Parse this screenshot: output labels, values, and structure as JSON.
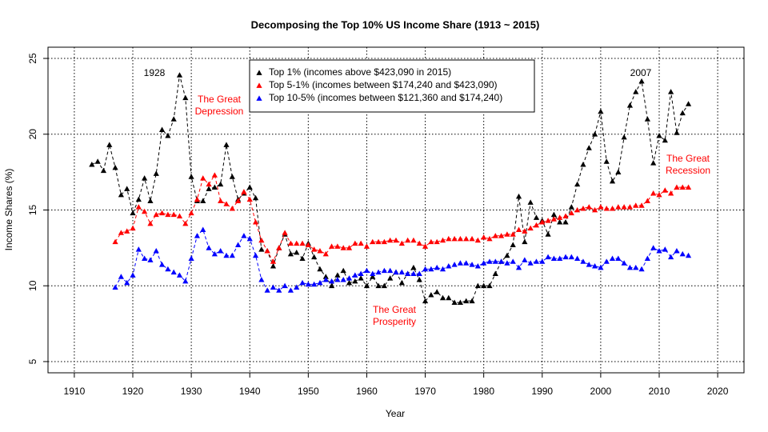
{
  "chart_data": {
    "type": "line",
    "title": "Decomposing the Top 10% US Income Share (1913 ~ 2015)",
    "x_label": "Year",
    "y_label": "Income Shares (%)",
    "x": [
      1913,
      1914,
      1915,
      1916,
      1917,
      1918,
      1919,
      1920,
      1921,
      1922,
      1923,
      1924,
      1925,
      1926,
      1927,
      1928,
      1929,
      1930,
      1931,
      1932,
      1933,
      1934,
      1935,
      1936,
      1937,
      1938,
      1939,
      1940,
      1941,
      1942,
      1943,
      1944,
      1945,
      1946,
      1947,
      1948,
      1949,
      1950,
      1951,
      1952,
      1953,
      1954,
      1955,
      1956,
      1957,
      1958,
      1959,
      1960,
      1961,
      1962,
      1963,
      1964,
      1965,
      1966,
      1967,
      1968,
      1969,
      1970,
      1971,
      1972,
      1973,
      1974,
      1975,
      1976,
      1977,
      1978,
      1979,
      1980,
      1981,
      1982,
      1983,
      1984,
      1985,
      1986,
      1987,
      1988,
      1989,
      1990,
      1991,
      1992,
      1993,
      1994,
      1995,
      1996,
      1997,
      1998,
      1999,
      2000,
      2001,
      2002,
      2003,
      2004,
      2005,
      2006,
      2007,
      2008,
      2009,
      2010,
      2011,
      2012,
      2013,
      2014,
      2015
    ],
    "series": [
      {
        "name": "Top 1% (incomes above $423,090 in 2015)",
        "color": "#000000",
        "values": [
          18.0,
          18.2,
          17.6,
          19.3,
          17.8,
          16.0,
          16.4,
          14.8,
          15.7,
          17.1,
          15.6,
          17.4,
          20.3,
          19.9,
          21.0,
          23.9,
          22.4,
          17.2,
          15.6,
          15.6,
          16.4,
          16.5,
          16.7,
          19.3,
          17.2,
          15.7,
          16.1,
          16.5,
          15.8,
          12.4,
          12.3,
          11.3,
          12.5,
          13.4,
          12.1,
          12.2,
          11.8,
          12.8,
          11.9,
          11.1,
          10.6,
          10.0,
          10.7,
          11.0,
          10.2,
          10.3,
          10.5,
          10.0,
          10.6,
          10.0,
          10.0,
          10.5,
          10.9,
          10.2,
          10.8,
          11.2,
          10.4,
          9.0,
          9.4,
          9.6,
          9.2,
          9.2,
          8.9,
          8.9,
          9.0,
          9.0,
          10.0,
          10.0,
          10.0,
          10.8,
          11.6,
          12.0,
          12.7,
          15.9,
          12.9,
          15.5,
          14.5,
          14.3,
          13.4,
          14.7,
          14.2,
          14.2,
          15.2,
          16.7,
          18.0,
          19.1,
          20.0,
          21.5,
          18.2,
          16.9,
          17.5,
          19.8,
          21.9,
          22.8,
          23.5,
          21.0,
          18.1,
          19.9,
          19.6,
          22.8,
          20.1,
          21.4,
          22.0
        ]
      },
      {
        "name": "Top 5-1% (incomes between $174,240 and $423,090)",
        "color": "#ff0000",
        "values": [
          null,
          null,
          null,
          null,
          12.9,
          13.5,
          13.6,
          13.8,
          15.2,
          14.9,
          14.1,
          14.7,
          14.8,
          14.7,
          14.7,
          14.6,
          14.1,
          14.8,
          15.7,
          17.1,
          16.7,
          17.3,
          15.6,
          15.4,
          15.1,
          15.6,
          16.2,
          15.7,
          14.2,
          13.0,
          12.3,
          11.6,
          12.5,
          13.5,
          12.8,
          12.8,
          12.8,
          12.7,
          12.4,
          12.3,
          12.1,
          12.6,
          12.6,
          12.5,
          12.5,
          12.8,
          12.8,
          12.6,
          12.9,
          12.9,
          12.9,
          13.0,
          13.0,
          12.8,
          13.0,
          13.0,
          12.8,
          12.6,
          12.9,
          12.9,
          13.0,
          13.1,
          13.1,
          13.1,
          13.1,
          13.1,
          13.0,
          13.2,
          13.1,
          13.3,
          13.3,
          13.4,
          13.4,
          13.7,
          13.6,
          13.8,
          14.0,
          14.2,
          14.3,
          14.4,
          14.5,
          14.6,
          14.8,
          15.0,
          15.1,
          15.2,
          15.0,
          15.2,
          15.1,
          15.1,
          15.2,
          15.2,
          15.2,
          15.3,
          15.3,
          15.6,
          16.1,
          16.0,
          16.3,
          16.1,
          16.5,
          16.5,
          16.5
        ]
      },
      {
        "name": "Top 10-5% (incomes between $121,360 and $174,240)",
        "color": "#0000ff",
        "values": [
          null,
          null,
          null,
          null,
          9.9,
          10.6,
          10.2,
          10.7,
          12.4,
          11.8,
          11.7,
          12.3,
          11.4,
          11.1,
          10.9,
          10.7,
          10.3,
          11.8,
          13.3,
          13.7,
          12.5,
          12.1,
          12.3,
          12.0,
          12.0,
          12.7,
          13.3,
          13.1,
          12.0,
          10.4,
          9.7,
          9.9,
          9.7,
          10.0,
          9.7,
          9.9,
          10.2,
          10.1,
          10.1,
          10.2,
          10.4,
          10.3,
          10.4,
          10.4,
          10.5,
          10.7,
          10.8,
          11.0,
          10.8,
          10.9,
          11.0,
          11.0,
          10.9,
          10.9,
          10.8,
          10.8,
          10.8,
          11.1,
          11.1,
          11.2,
          11.1,
          11.3,
          11.4,
          11.5,
          11.5,
          11.4,
          11.3,
          11.5,
          11.6,
          11.6,
          11.6,
          11.5,
          11.6,
          11.2,
          11.7,
          11.5,
          11.6,
          11.6,
          11.9,
          11.8,
          11.8,
          11.9,
          11.9,
          11.8,
          11.6,
          11.4,
          11.3,
          11.2,
          11.6,
          11.8,
          11.8,
          11.5,
          11.2,
          11.2,
          11.1,
          11.8,
          12.5,
          12.3,
          12.4,
          11.9,
          12.3,
          12.1,
          12.0
        ]
      }
    ],
    "annotations": [
      {
        "lines": [
          "1928"
        ],
        "color": "#000000"
      },
      {
        "lines": [
          "The Great",
          "Depression"
        ],
        "color": "#ff0000"
      },
      {
        "lines": [
          "The Great",
          "Prosperity"
        ],
        "color": "#ff0000"
      },
      {
        "lines": [
          "2007"
        ],
        "color": "#000000"
      },
      {
        "lines": [
          "The Great",
          "Recession"
        ],
        "color": "#ff0000"
      }
    ],
    "xlim": [
      1905.5,
      2024.5
    ],
    "ylim": [
      4.26,
      25.74
    ],
    "xticks": [
      1910,
      1920,
      1930,
      1940,
      1950,
      1960,
      1970,
      1980,
      1990,
      2000,
      2010,
      2020
    ],
    "yticks": [
      5,
      10,
      15,
      20,
      25
    ],
    "grid": true,
    "legend": "top-center"
  }
}
